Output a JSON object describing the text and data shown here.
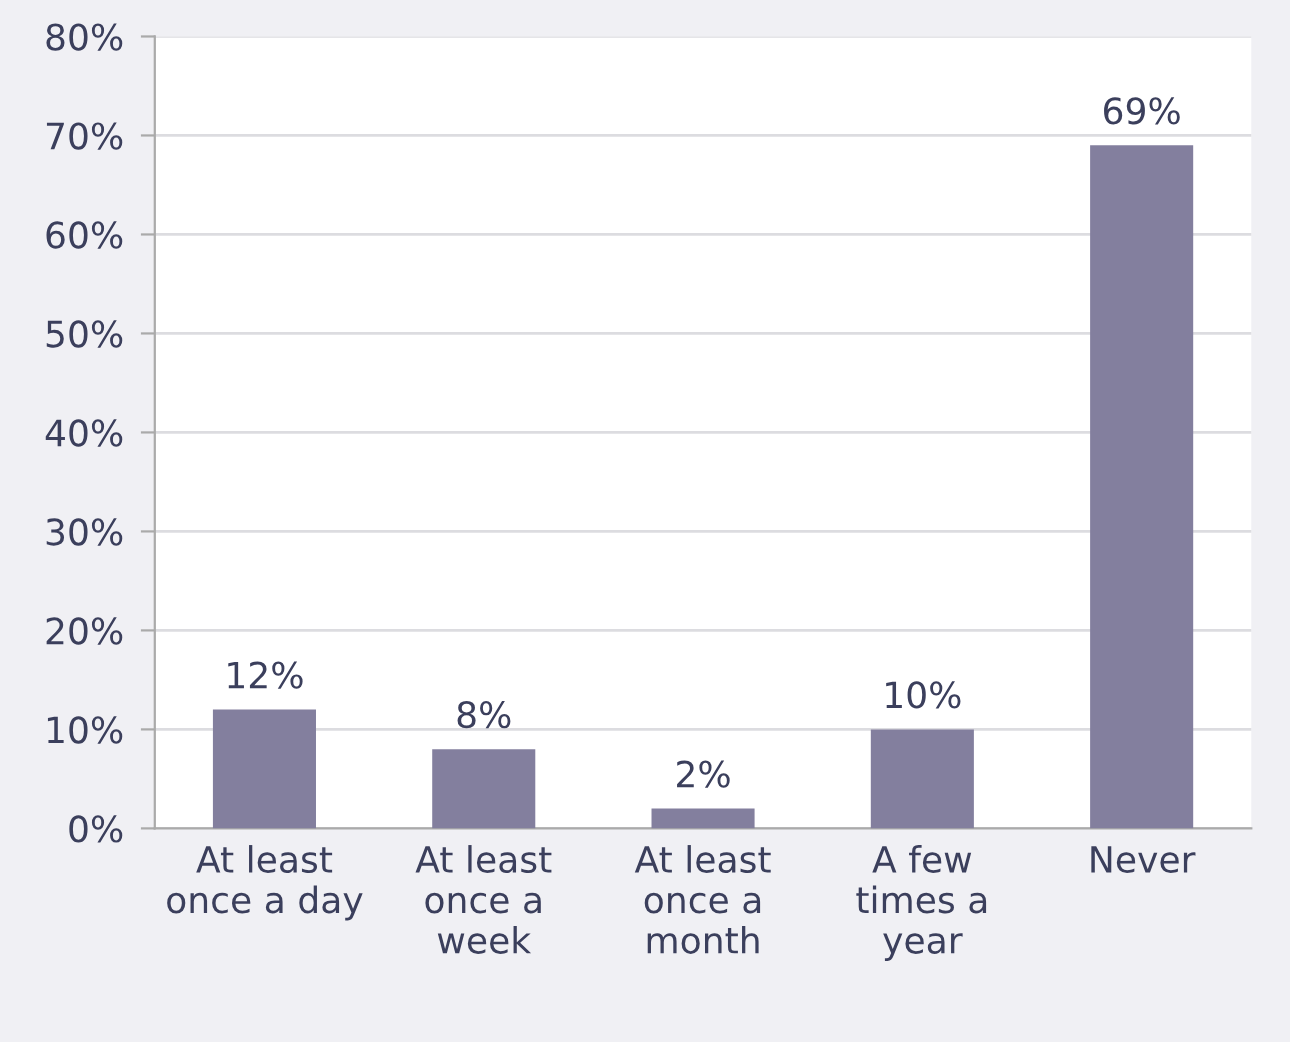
{
  "chart_data": {
    "type": "bar",
    "categories": [
      "At least\nonce a day",
      "At least\nonce a\nweek",
      "At least\nonce a\nmonth",
      "A few\ntimes a\nyear",
      "Never"
    ],
    "values": [
      12,
      8,
      2,
      10,
      69
    ],
    "color": "#837f9e",
    "value_labels": [
      "12%",
      "8%",
      "2%",
      "10%",
      "69%"
    ],
    "ylim": [
      0,
      80
    ],
    "yticks": [
      {
        "value": 0,
        "label": "0%"
      },
      {
        "value": 10,
        "label": "10%"
      },
      {
        "value": 20,
        "label": "20%"
      },
      {
        "value": 30,
        "label": "30%"
      },
      {
        "value": 40,
        "label": "40%"
      },
      {
        "value": 50,
        "label": "50%"
      },
      {
        "value": 60,
        "label": "60%"
      },
      {
        "value": 70,
        "label": "70%"
      },
      {
        "value": 80,
        "label": "80%"
      }
    ],
    "grid": "y",
    "legend": false
  }
}
